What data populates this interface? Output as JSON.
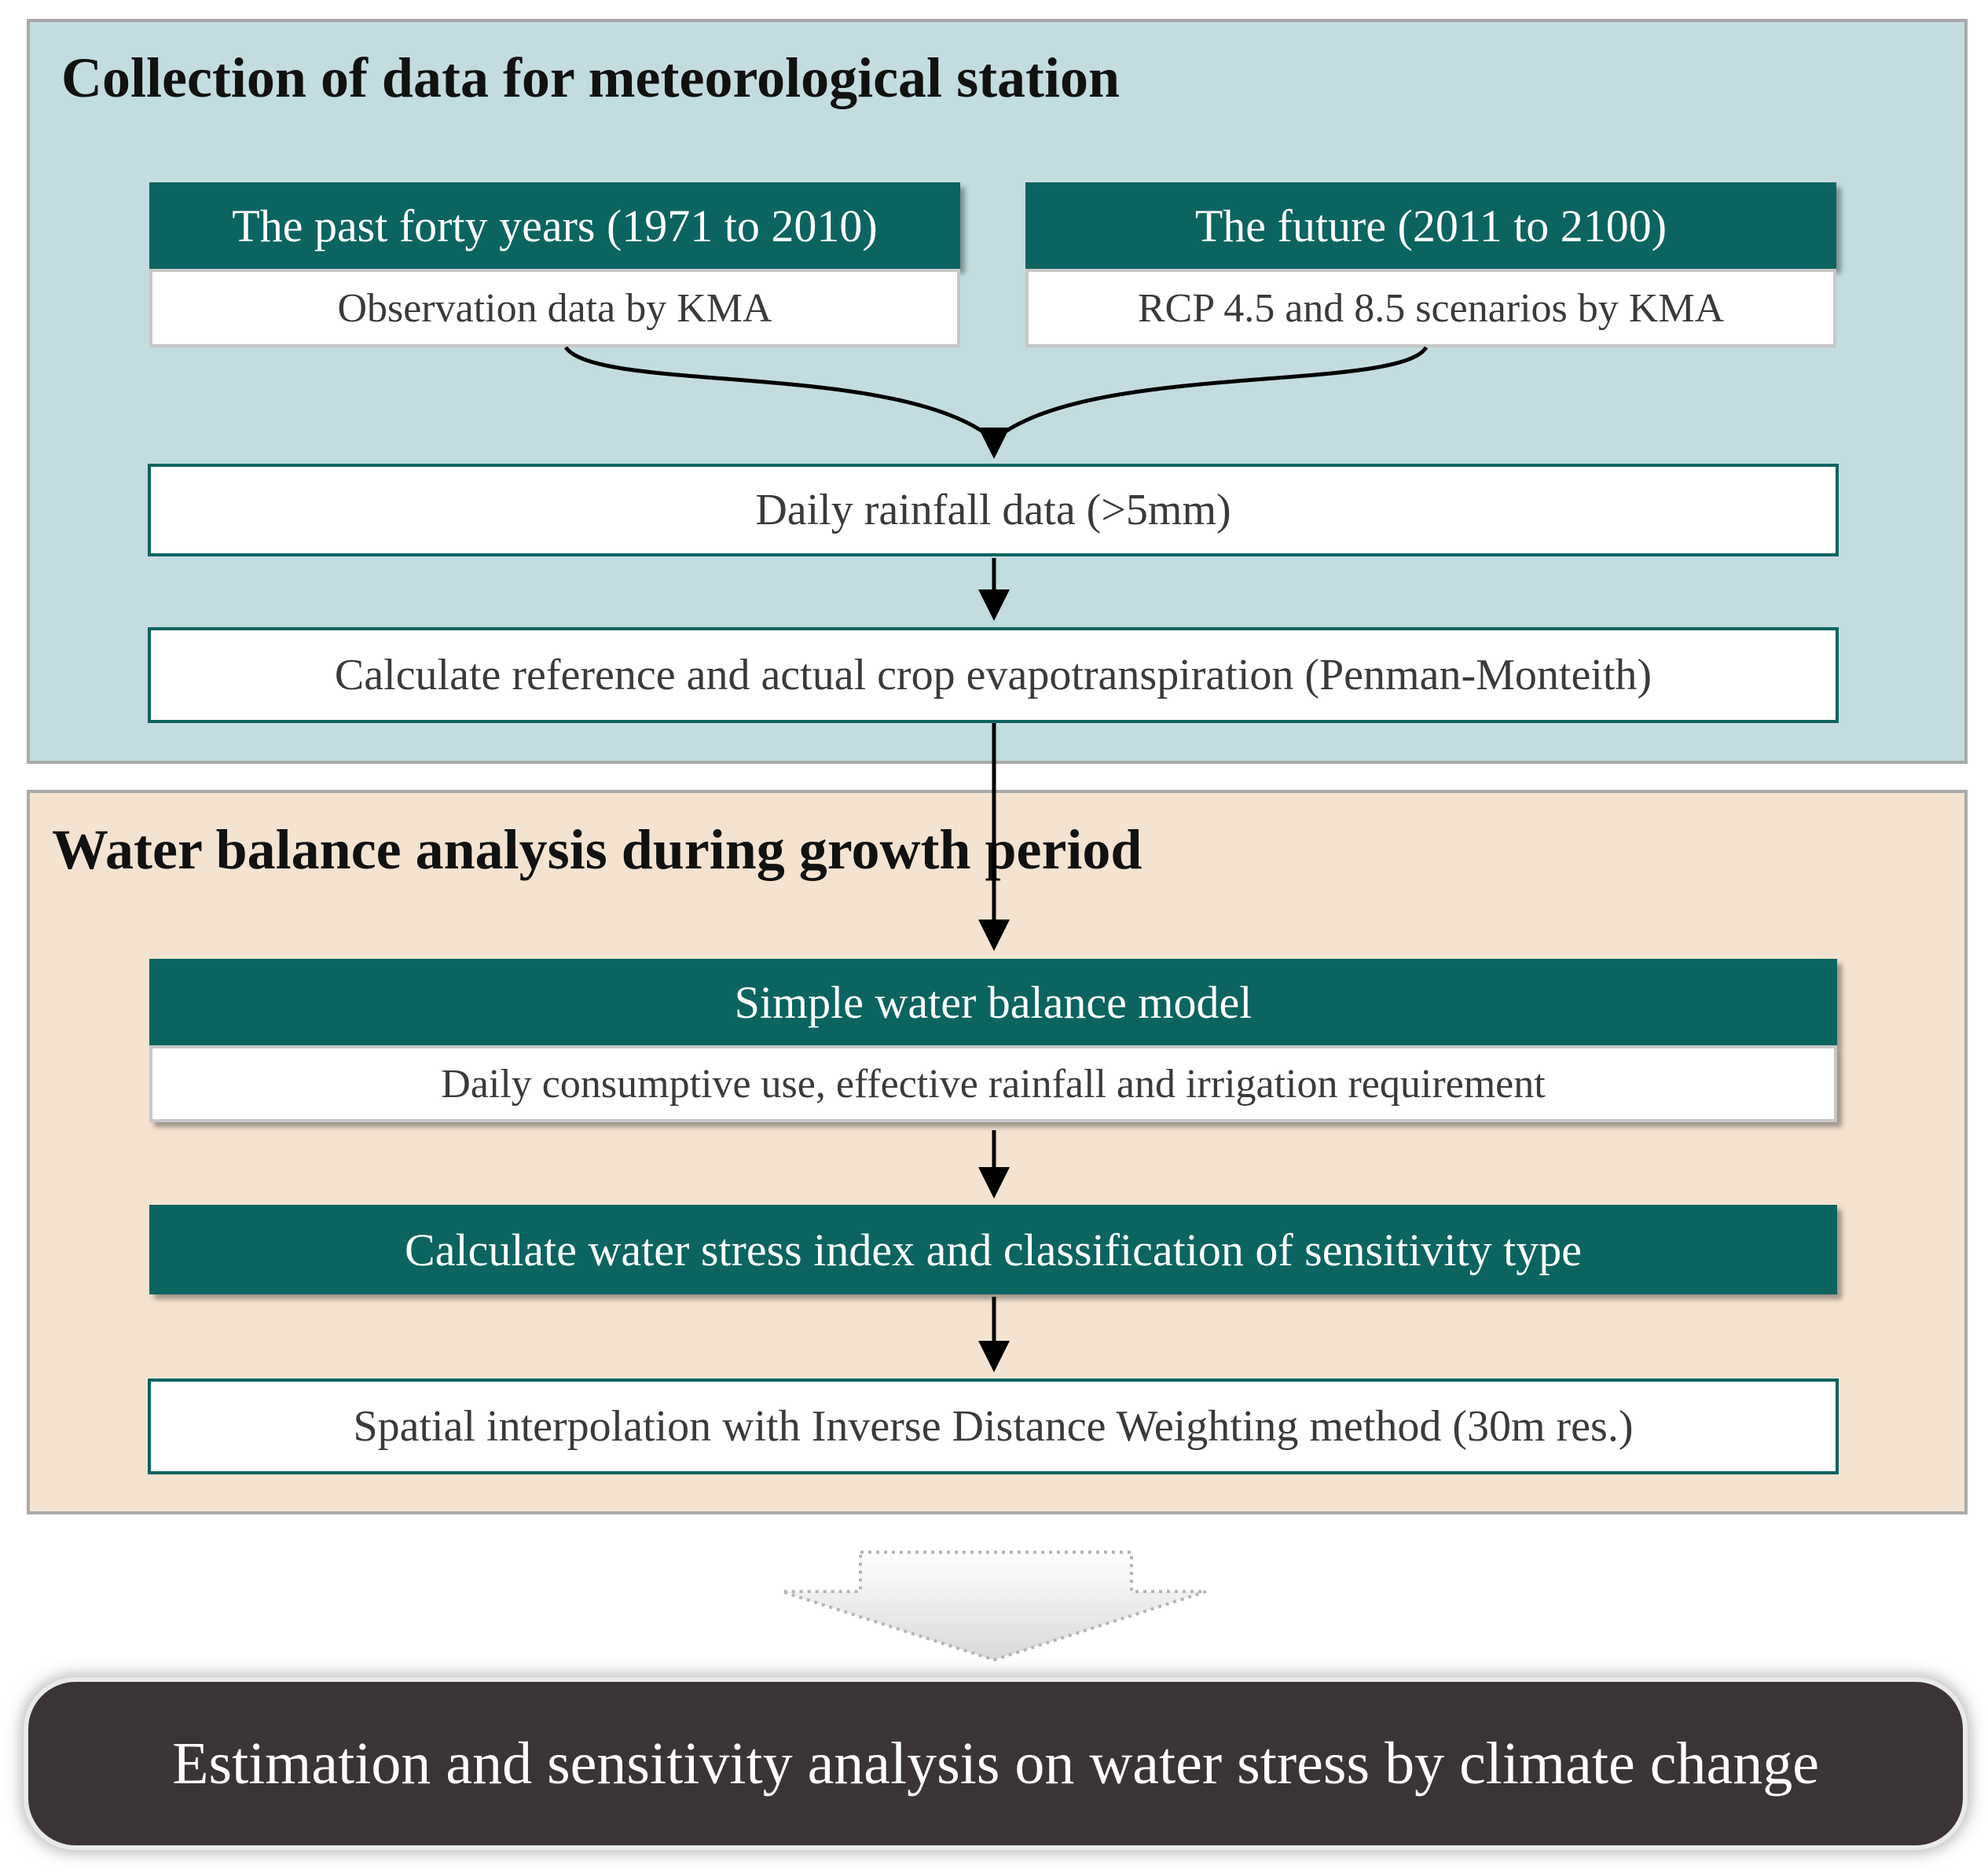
{
  "section1": {
    "title": "Collection of data for meteorological station",
    "past": {
      "header": "The past forty years (1971 to 2010)",
      "detail": "Observation data by KMA"
    },
    "future": {
      "header": "The future (2011 to 2100)",
      "detail": "RCP 4.5 and 8.5 scenarios by KMA"
    },
    "rainfall": "Daily rainfall data (>5mm)",
    "evapotranspiration": "Calculate reference and actual crop evapotranspiration (Penman-Monteith)"
  },
  "section2": {
    "title": "Water balance analysis during growth period",
    "model": {
      "header": "Simple water balance model",
      "detail": "Daily consumptive use, effective rainfall and irrigation requirement"
    },
    "stress_index": "Calculate water stress index and classification of sensitivity type",
    "interpolation": "Spatial interpolation with Inverse Distance Weighting method (30m res.)"
  },
  "result": "Estimation and sensitivity analysis on water stress by climate change",
  "colors": {
    "panel1_bg": "#c3dcdf",
    "panel2_bg": "#f4e3d1",
    "header_teal": "#0c6460",
    "result_bg": "#3a3434"
  }
}
